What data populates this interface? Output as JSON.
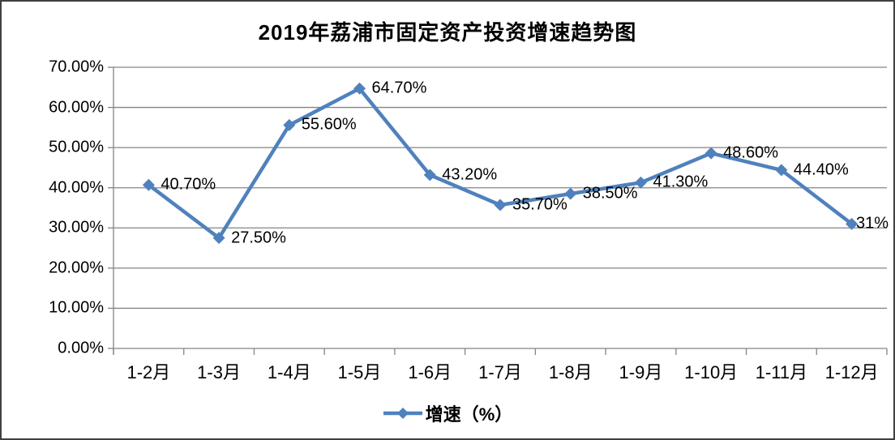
{
  "chart": {
    "title": "2019年荔浦市固定资产投资增速趋势图",
    "legend_label": "增速（%）"
  },
  "chart_data": {
    "type": "line",
    "title": "2019年荔浦市固定资产投资增速趋势图",
    "categories": [
      "1-2月",
      "1-3月",
      "1-4月",
      "1-5月",
      "1-6月",
      "1-7月",
      "1-8月",
      "1-9月",
      "1-10月",
      "1-11月",
      "1-12月"
    ],
    "series": [
      {
        "name": "增速（%）",
        "values": [
          40.7,
          27.5,
          55.6,
          64.7,
          43.2,
          35.7,
          38.5,
          41.3,
          48.6,
          44.4,
          31
        ],
        "data_labels": [
          "40.70%",
          "27.50%",
          "55.60%",
          "64.70%",
          "43.20%",
          "35.70%",
          "38.50%",
          "41.30%",
          "48.60%",
          "44.40%",
          "31%"
        ]
      }
    ],
    "y_tick_labels": [
      "70.00%",
      "60.00%",
      "50.00%",
      "40.00%",
      "30.00%",
      "20.00%",
      "10.00%",
      "0.00%"
    ],
    "ylim": [
      0,
      70
    ],
    "xlabel": "",
    "ylabel": "",
    "grid": true,
    "legend_position": "bottom",
    "marker_shape": "diamond",
    "colors": {
      "line": "#4F81BD",
      "marker": "#4F81BD",
      "grid": "#848484",
      "axis": "#848484",
      "text": "#000000",
      "frame_border": "#404040",
      "background": "#ffffff"
    }
  }
}
